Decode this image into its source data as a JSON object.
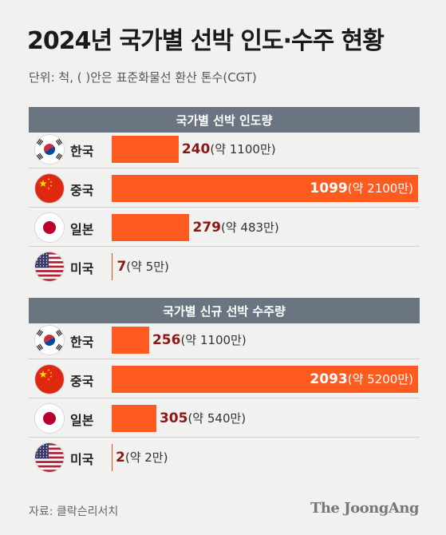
{
  "header": {
    "title": "2024년 국가별 선박 인도·수주 현황",
    "unit_note": "단위: 척, (    )안은 표준화물선 환산 톤수(CGT)"
  },
  "colors": {
    "bar": "#ff5a1f",
    "value": "#8e1616",
    "section_header": "#6b7581"
  },
  "chart_data": [
    {
      "type": "bar",
      "title": "국가별 선박 인도량",
      "categories": [
        "한국",
        "중국",
        "일본",
        "미국"
      ],
      "flags": [
        "korea-flag",
        "china-flag",
        "japan-flag",
        "usa-flag"
      ],
      "values": [
        240,
        1099,
        279,
        7
      ],
      "labels": [
        "240",
        "1099",
        "279",
        "7"
      ],
      "cgt": [
        "(약 1100만)",
        "(약 2100만)",
        "(약 483만)",
        "(약 5만)"
      ]
    },
    {
      "type": "bar",
      "title": "국가별 신규 선박 수주량",
      "categories": [
        "한국",
        "중국",
        "일본",
        "미국"
      ],
      "flags": [
        "korea-flag",
        "china-flag",
        "japan-flag",
        "usa-flag"
      ],
      "values": [
        256,
        2093,
        305,
        2
      ],
      "labels": [
        "256",
        "2093",
        "305",
        "2"
      ],
      "cgt": [
        "(약 1100만)",
        "(약 5200만)",
        "(약 540만)",
        "(약 2만)"
      ]
    }
  ],
  "footer": {
    "source": "자료: 클락슨리서치",
    "brand": "The JoongAng"
  }
}
